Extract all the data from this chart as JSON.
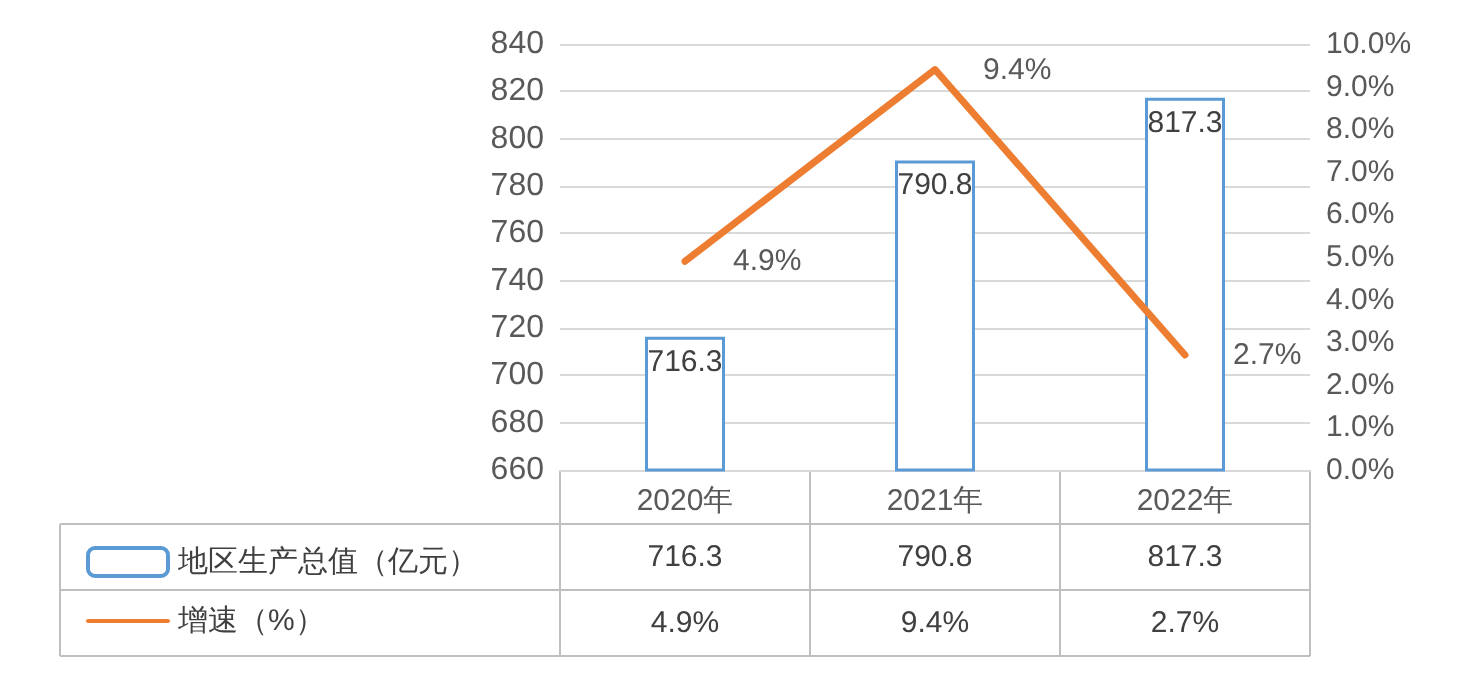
{
  "chart_data": {
    "type": "bar",
    "categories": [
      "2020年",
      "2021年",
      "2022年"
    ],
    "series": [
      {
        "name": "地区生产总值（亿元）",
        "color": "#5b9bd5",
        "values": [
          716.3,
          790.8,
          817.3
        ],
        "value_labels": [
          "716.3",
          "790.8",
          "817.3"
        ]
      },
      {
        "name": "增速（%）",
        "type": "line",
        "axis": "y2",
        "color": "#ed7d31",
        "values": [
          4.9,
          9.4,
          2.7
        ],
        "value_labels": [
          "4.9%",
          "9.4%",
          "2.7%"
        ],
        "marker": "none"
      }
    ],
    "ylim": [
      660,
      840
    ],
    "yticks": [
      660,
      680,
      700,
      720,
      740,
      760,
      780,
      800,
      820,
      840
    ],
    "y2lim": [
      0,
      10
    ],
    "y2ticks": [
      {
        "value": 0,
        "label": "0.0%"
      },
      {
        "value": 1,
        "label": "1.0%"
      },
      {
        "value": 2,
        "label": "2.0%"
      },
      {
        "value": 3,
        "label": "3.0%"
      },
      {
        "value": 4,
        "label": "4.0%"
      },
      {
        "value": 5,
        "label": "5.0%"
      },
      {
        "value": 6,
        "label": "6.0%"
      },
      {
        "value": 7,
        "label": "7.0%"
      },
      {
        "value": 8,
        "label": "8.0%"
      },
      {
        "value": 9,
        "label": "9.0%"
      },
      {
        "value": 10,
        "label": "10.0%"
      }
    ],
    "grid": "y",
    "legend": "bottom"
  }
}
